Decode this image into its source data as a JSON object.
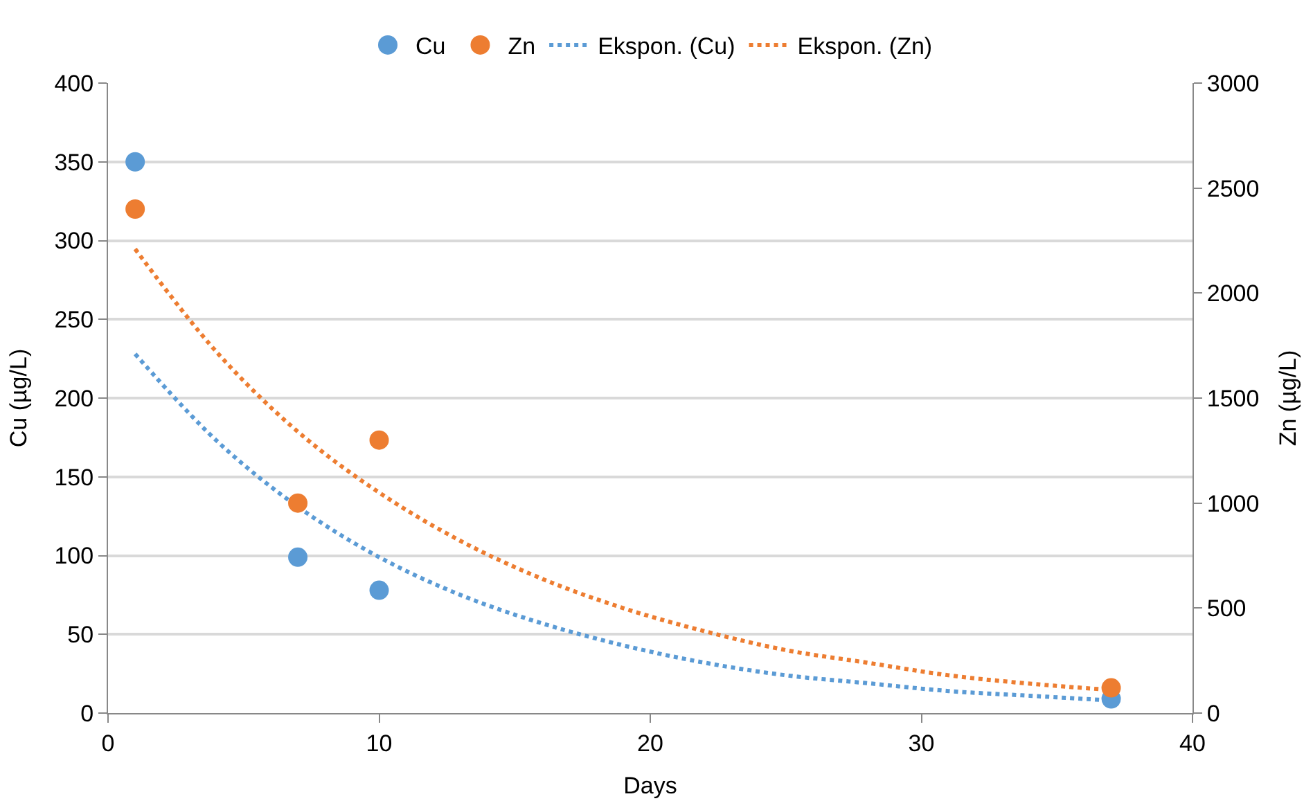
{
  "chart_data": {
    "type": "scatter",
    "xlabel": "Days",
    "ylabel": "Cu (µg/L)",
    "y2label": "Zn (µg/L)",
    "xlim": [
      0,
      40
    ],
    "xticks": [
      0,
      10,
      20,
      30,
      40
    ],
    "ylim": [
      0,
      400
    ],
    "yticks": [
      0,
      50,
      100,
      150,
      200,
      250,
      300,
      350,
      400
    ],
    "y2lim": [
      0,
      3000
    ],
    "y2ticks": [
      0,
      500,
      1000,
      1500,
      2000,
      2500,
      3000
    ],
    "grid": "y",
    "legend": "top",
    "series": [
      {
        "name": "Cu",
        "marker": "circle",
        "color": "#5b9bd5",
        "x": [
          1,
          7,
          10,
          37
        ],
        "values": [
          350,
          99,
          78,
          9
        ]
      },
      {
        "name": "Zn",
        "marker": "circle",
        "color": "#ed7d31",
        "axis": "y2",
        "x": [
          1,
          7,
          10,
          37
        ],
        "values": [
          2400,
          1000,
          1300,
          120
        ]
      },
      {
        "name": "Ekspon. (Cu)",
        "type": "line",
        "line_style": "dotted",
        "color": "#5b9bd5",
        "x": [
          1,
          4,
          7,
          10,
          13,
          16,
          19,
          22,
          25,
          28,
          31,
          34,
          37
        ],
        "values": [
          228,
          173,
          131,
          99,
          75,
          57,
          43,
          32,
          24,
          19,
          14,
          11,
          8
        ]
      },
      {
        "name": "Ekspon. (Zn)",
        "type": "line",
        "line_style": "dotted",
        "color": "#ed7d31",
        "axis": "y2",
        "x": [
          1,
          4,
          7,
          10,
          13,
          16,
          19,
          22,
          25,
          28,
          31,
          34,
          37
        ],
        "values": [
          2210,
          1720,
          1340,
          1050,
          820,
          640,
          500,
          390,
          300,
          240,
          180,
          140,
          110
        ]
      }
    ]
  }
}
